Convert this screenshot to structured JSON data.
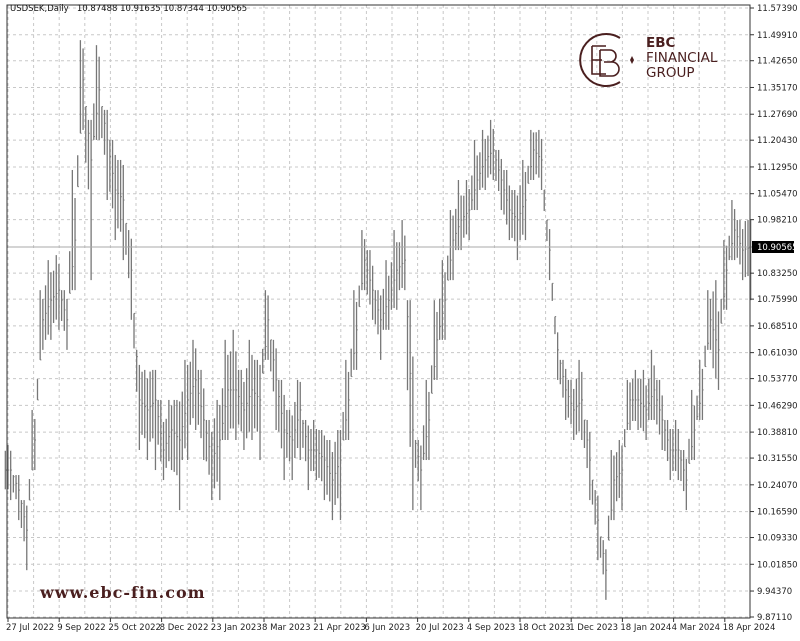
{
  "header": {
    "symbol": "USDSEK,Daily",
    "ohlc": "10.87488 10.91635 10.87344 10.90565"
  },
  "watermark": {
    "logo_line1": "EBC",
    "logo_line2": "FINANCIAL",
    "logo_line3": "GROUP",
    "url": "www.ebc-fin.com",
    "brand_color": "#4a1f1f"
  },
  "chart_data": {
    "type": "ohlc-bar",
    "title": "USDSEK,Daily",
    "ylim": [
      9.8711,
      11.5739
    ],
    "grid": true,
    "current_price": "10.90565",
    "bar_color": "#777777",
    "y_ticks": [
      "11.57390",
      "11.49910",
      "11.42650",
      "11.35170",
      "11.27690",
      "11.20430",
      "11.12950",
      "11.05470",
      "10.98210",
      "10.83250",
      "10.75990",
      "10.68510",
      "10.61030",
      "10.53770",
      "10.46290",
      "10.38810",
      "10.31550",
      "10.24070",
      "10.16590",
      "10.09330",
      "10.01850",
      "9.94370",
      "9.87110"
    ],
    "x_ticks": [
      "27 Jul 2022",
      "9 Sep 2022",
      "25 Oct 2022",
      "8 Dec 2022",
      "23 Jan 2023",
      "8 Mar 2023",
      "21 Apr 2023",
      "6 Jun 2023",
      "20 Jul 2023",
      "4 Sep 2023",
      "18 Oct 2023",
      "1 Dec 2023",
      "18 Jan 2024",
      "4 Mar 2024",
      "18 Apr 2024"
    ],
    "bar_fields": [
      "high",
      "low",
      "close"
    ],
    "bars": [
      [
        10.352,
        10.198,
        10.282
      ],
      [
        10.268,
        10.142,
        10.226
      ],
      [
        10.198,
        10.002,
        10.114
      ],
      [
        10.45,
        10.282,
        10.366
      ],
      [
        10.785,
        10.618,
        10.702
      ],
      [
        10.869,
        10.646,
        10.757
      ],
      [
        10.883,
        10.674,
        10.785
      ],
      [
        10.785,
        10.618,
        10.702
      ],
      [
        11.121,
        10.785,
        10.925
      ],
      [
        11.484,
        11.233,
        11.373
      ],
      [
        11.261,
        10.813,
        11.149
      ],
      [
        11.47,
        11.205,
        11.345
      ],
      [
        11.289,
        11.037,
        11.205
      ],
      [
        11.205,
        10.925,
        11.065
      ],
      [
        11.149,
        10.869,
        11.037
      ],
      [
        10.953,
        10.702,
        10.841
      ],
      [
        10.618,
        10.338,
        10.478
      ],
      [
        10.562,
        10.31,
        10.45
      ],
      [
        10.562,
        10.282,
        10.478
      ],
      [
        10.478,
        10.254,
        10.338
      ],
      [
        10.478,
        10.282,
        10.394
      ],
      [
        10.478,
        10.17,
        10.366
      ],
      [
        10.59,
        10.31,
        10.478
      ],
      [
        10.646,
        10.394,
        10.534
      ],
      [
        10.562,
        10.31,
        10.422
      ],
      [
        10.422,
        10.198,
        10.31
      ],
      [
        10.478,
        10.198,
        10.366
      ],
      [
        10.646,
        10.366,
        10.506
      ],
      [
        10.674,
        10.366,
        10.506
      ],
      [
        10.562,
        10.338,
        10.45
      ],
      [
        10.646,
        10.366,
        10.506
      ],
      [
        10.59,
        10.31,
        10.478
      ],
      [
        10.785,
        10.59,
        10.702
      ],
      [
        10.646,
        10.394,
        10.534
      ],
      [
        10.534,
        10.254,
        10.394
      ],
      [
        10.45,
        10.254,
        10.366
      ],
      [
        10.534,
        10.31,
        10.45
      ],
      [
        10.422,
        10.226,
        10.338
      ],
      [
        10.422,
        10.254,
        10.338
      ],
      [
        10.394,
        10.198,
        10.31
      ],
      [
        10.366,
        10.142,
        10.254
      ],
      [
        10.394,
        10.142,
        10.31
      ],
      [
        10.59,
        10.366,
        10.478
      ],
      [
        10.785,
        10.562,
        10.674
      ],
      [
        10.953,
        10.785,
        10.869
      ],
      [
        10.897,
        10.702,
        10.785
      ],
      [
        10.785,
        10.59,
        10.702
      ],
      [
        10.869,
        10.674,
        10.757
      ],
      [
        10.953,
        10.73,
        10.841
      ],
      [
        10.981,
        10.785,
        10.869
      ],
      [
        10.757,
        10.17,
        10.394
      ],
      [
        10.366,
        10.17,
        10.282
      ],
      [
        10.534,
        10.31,
        10.422
      ],
      [
        10.757,
        10.534,
        10.646
      ],
      [
        10.869,
        10.646,
        10.757
      ],
      [
        11.009,
        10.813,
        10.925
      ],
      [
        11.093,
        10.897,
        10.981
      ],
      [
        11.093,
        10.925,
        11.009
      ],
      [
        11.205,
        11.009,
        11.093
      ],
      [
        11.233,
        11.065,
        11.149
      ],
      [
        11.261,
        11.093,
        11.177
      ],
      [
        11.177,
        11.009,
        11.093
      ],
      [
        11.121,
        10.925,
        11.009
      ],
      [
        11.065,
        10.869,
        10.981
      ],
      [
        11.149,
        10.925,
        11.037
      ],
      [
        11.233,
        11.093,
        11.177
      ],
      [
        11.233,
        11.065,
        11.149
      ],
      [
        10.981,
        10.813,
        10.897
      ],
      [
        10.674,
        10.534,
        10.618
      ],
      [
        10.59,
        10.422,
        10.506
      ],
      [
        10.534,
        10.366,
        10.45
      ],
      [
        10.59,
        10.366,
        10.478
      ],
      [
        10.422,
        10.198,
        10.31
      ],
      [
        10.226,
        10.03,
        10.142
      ],
      [
        10.086,
        9.919,
        10.002
      ],
      [
        10.338,
        10.142,
        10.254
      ],
      [
        10.366,
        10.17,
        10.282
      ],
      [
        10.534,
        10.394,
        10.478
      ],
      [
        10.562,
        10.394,
        10.478
      ],
      [
        10.562,
        10.366,
        10.45
      ],
      [
        10.618,
        10.422,
        10.506
      ],
      [
        10.534,
        10.338,
        10.422
      ],
      [
        10.422,
        10.254,
        10.338
      ],
      [
        10.422,
        10.254,
        10.338
      ],
      [
        10.338,
        10.17,
        10.254
      ],
      [
        10.506,
        10.31,
        10.394
      ],
      [
        10.59,
        10.422,
        10.506
      ],
      [
        10.785,
        10.618,
        10.702
      ],
      [
        10.813,
        10.506,
        10.618
      ],
      [
        10.925,
        10.73,
        10.841
      ],
      [
        11.037,
        10.869,
        10.953
      ],
      [
        10.981,
        10.813,
        10.897
      ],
      [
        10.981,
        10.757,
        10.90565
      ]
    ]
  }
}
